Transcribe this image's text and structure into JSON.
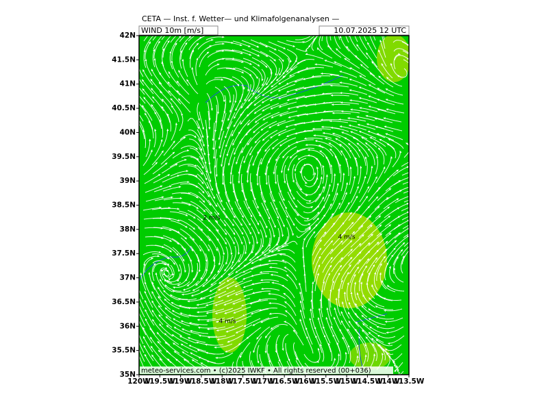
{
  "header": {
    "title": "CETA — Inst. f. Wetter— und Klimafolgenanalysen —",
    "field": "WIND 10m [m/s]",
    "valid": "10.07.2025 12 UTC"
  },
  "map": {
    "lat_ticks": [
      {
        "value": 35,
        "label": "35N"
      },
      {
        "value": 35.5,
        "label": "35.5N"
      },
      {
        "value": 36,
        "label": "36N"
      },
      {
        "value": 36.5,
        "label": "36.5N"
      },
      {
        "value": 37,
        "label": "37N"
      },
      {
        "value": 37.5,
        "label": "37.5N"
      },
      {
        "value": 38,
        "label": "38N"
      },
      {
        "value": 38.5,
        "label": "38.5N"
      },
      {
        "value": 39,
        "label": "39N"
      },
      {
        "value": 39.5,
        "label": "39.5N"
      },
      {
        "value": 40,
        "label": "40N"
      },
      {
        "value": 40.5,
        "label": "40.5N"
      },
      {
        "value": 41,
        "label": "41N"
      },
      {
        "value": 41.5,
        "label": "41.5N"
      },
      {
        "value": 42,
        "label": "42N"
      }
    ],
    "lon_ticks": [
      {
        "value": -120,
        "label": "120W"
      },
      {
        "value": -119.5,
        "label": "119.5W"
      },
      {
        "value": -119,
        "label": "119W"
      },
      {
        "value": -118.5,
        "label": "118.5W"
      },
      {
        "value": -118,
        "label": "118W"
      },
      {
        "value": -117.5,
        "label": "117.5W"
      },
      {
        "value": -117,
        "label": "117W"
      },
      {
        "value": -116.5,
        "label": "116.5W"
      },
      {
        "value": -116,
        "label": "116W"
      },
      {
        "value": -115.5,
        "label": "115.5W"
      },
      {
        "value": -115,
        "label": "115W"
      },
      {
        "value": -114.5,
        "label": "114.5W"
      },
      {
        "value": -114,
        "label": "114W"
      },
      {
        "value": -113.5,
        "label": "113.5W"
      }
    ],
    "annotations": [
      "2 m/s",
      "4 m/s",
      "4 m/s"
    ],
    "footer": "meteo-services.com • (c)2025 IWKF • All rights reserved (00+036)"
  }
}
